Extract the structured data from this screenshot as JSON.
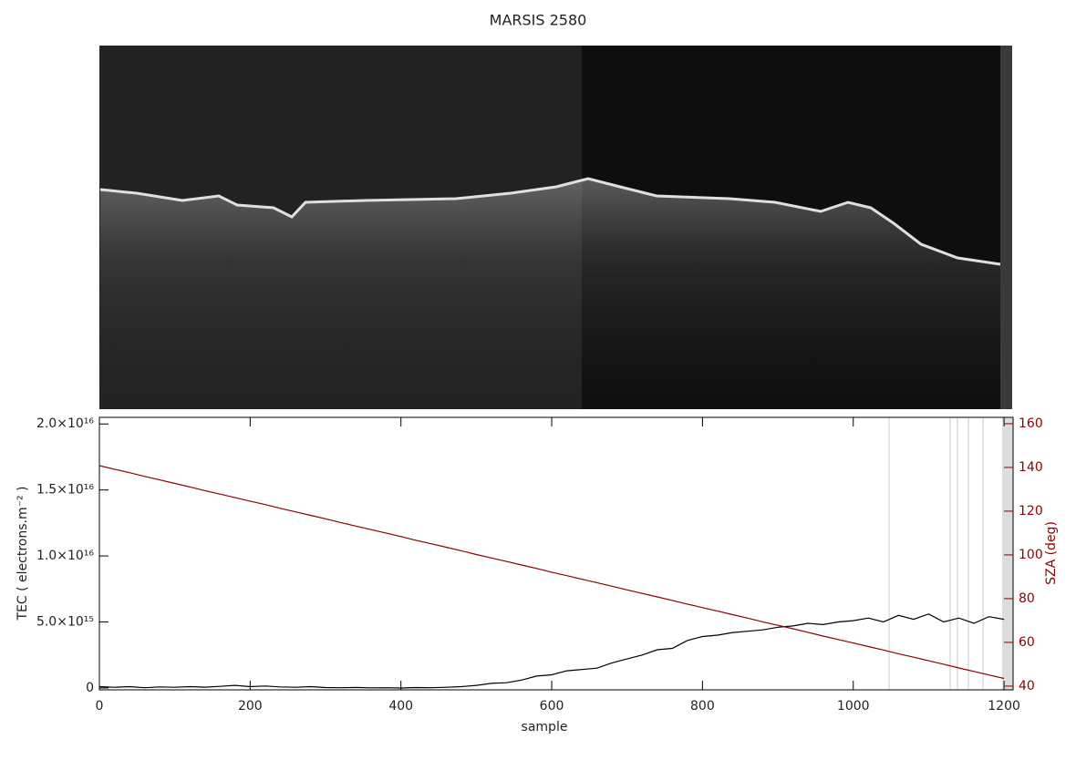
{
  "chart_data": {
    "type": "line",
    "title": "MARSIS 2580",
    "xlabel": "sample",
    "ylabel": "TEC ( electrons.m⁻² )",
    "y2label": "SZA (deg)",
    "xlim": [
      0,
      1212
    ],
    "xticks": [
      0,
      200,
      400,
      600,
      800,
      1000,
      1200
    ],
    "ylim": [
      -140000000000000.0,
      2.05e+16
    ],
    "yticks": [
      0,
      {
        "value": 5000000000000000.0,
        "label": "5.0×10¹⁵"
      },
      {
        "value": 1e+16,
        "label": "1.0×10¹⁶"
      },
      {
        "value": 1.5e+16,
        "label": "1.5×10¹⁶"
      },
      {
        "value": 2e+16,
        "label": "2.0×10¹⁶"
      }
    ],
    "y2lim": [
      38.3,
      162.9
    ],
    "y2ticks": [
      40,
      60,
      80,
      100,
      120,
      140,
      160
    ],
    "y2color": "#8b0000",
    "x": [
      0,
      20,
      40,
      60,
      80,
      100,
      120,
      140,
      160,
      180,
      200,
      220,
      240,
      260,
      280,
      300,
      320,
      340,
      360,
      380,
      400,
      420,
      440,
      460,
      480,
      500,
      520,
      540,
      560,
      580,
      600,
      620,
      640,
      660,
      680,
      700,
      720,
      740,
      760,
      780,
      800,
      820,
      840,
      860,
      880,
      900,
      920,
      940,
      960,
      980,
      1000,
      1020,
      1040,
      1060,
      1080,
      1100,
      1120,
      1140,
      1160,
      1180,
      1200
    ],
    "series": [
      {
        "color": "#000000",
        "values": [
          100000000000000.0,
          50000000000000.0,
          100000000000000.0,
          20000000000000.0,
          80000000000000.0,
          50000000000000.0,
          100000000000000.0,
          60000000000000.0,
          120000000000000.0,
          200000000000000.0,
          100000000000000.0,
          150000000000000.0,
          80000000000000.0,
          50000000000000.0,
          100000000000000.0,
          30000000000000.0,
          20000000000000.0,
          40000000000000.0,
          10000000000000.0,
          20000000000000.0,
          0,
          30000000000000.0,
          20000000000000.0,
          50000000000000.0,
          100000000000000.0,
          200000000000000.0,
          350000000000000.0,
          400000000000000.0,
          600000000000000.0,
          900000000000000.0,
          1000000000000000.0,
          1300000000000000.0,
          1400000000000000.0,
          1500000000000000.0,
          1900000000000000.0,
          2200000000000000.0,
          2500000000000000.0,
          2900000000000000.0,
          3000000000000000.0,
          3600000000000000.0,
          3900000000000000.0,
          4000000000000000.0,
          4200000000000000.0,
          4300000000000000.0,
          4400000000000000.0,
          4600000000000000.0,
          4700000000000000.0,
          4900000000000000.0,
          4800000000000000.0,
          5000000000000000.0,
          5100000000000000.0,
          5300000000000000.0,
          5000000000000000.0,
          5500000000000000.0,
          5200000000000000.0,
          5600000000000000.0,
          5000000000000000.0,
          5300000000000000.0,
          4900000000000000.0,
          5400000000000000.0,
          5200000000000000.0
        ]
      },
      {
        "color": "#8b0000",
        "axis": "y2",
        "values": [
          140.8,
          139.2,
          137.6,
          135.9,
          134.3,
          132.7,
          131.1,
          129.4,
          127.8,
          126.2,
          124.6,
          123.0,
          121.3,
          119.7,
          118.1,
          116.5,
          114.8,
          113.2,
          111.6,
          110.0,
          108.4,
          106.7,
          105.1,
          103.5,
          101.9,
          100.2,
          98.6,
          97.0,
          95.4,
          93.8,
          92.1,
          90.5,
          88.9,
          87.3,
          85.7,
          84.0,
          82.4,
          80.8,
          79.2,
          77.5,
          75.9,
          74.3,
          72.7,
          71.1,
          69.4,
          67.8,
          66.2,
          64.6,
          62.9,
          61.3,
          59.7,
          58.1,
          56.5,
          54.8,
          53.2,
          51.6,
          50.0,
          48.3,
          46.7,
          45.1,
          43.5
        ]
      }
    ]
  }
}
